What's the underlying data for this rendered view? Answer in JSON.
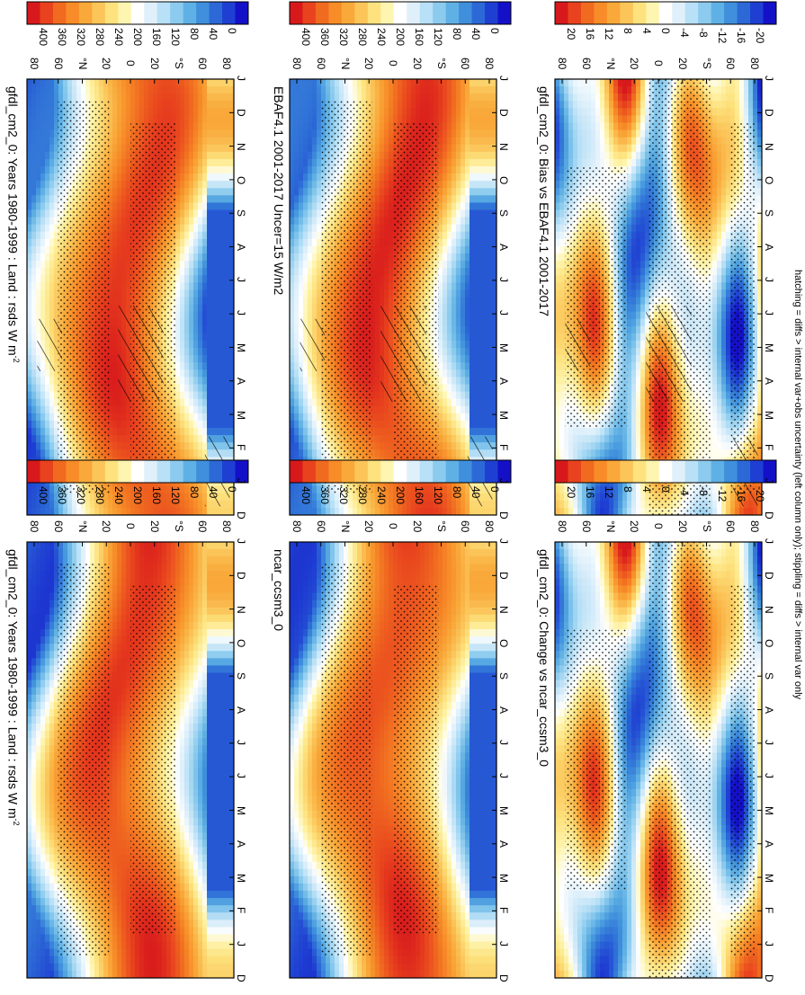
{
  "chart_data": {
    "type": "heatmap",
    "footer": "hatching = diffs > internal var+obs uncertainty (left column only); stippling = diffs > internal var only",
    "x_ticks": [
      "D",
      "J",
      "F",
      "M",
      "A",
      "M",
      "J",
      "J",
      "A",
      "S",
      "O",
      "N",
      "D",
      "J"
    ],
    "y_ticks": [
      "80",
      "60",
      "°N",
      "20",
      "0",
      "20",
      "°S",
      "60",
      "80"
    ],
    "scales": {
      "abs": {
        "ticks": [
          "400",
          "360",
          "320",
          "280",
          "240",
          "200",
          "160",
          "120",
          "80",
          "40",
          "0"
        ],
        "colors": [
          "#d7191c",
          "#e8431e",
          "#f06a20",
          "#f78c28",
          "#f9a93a",
          "#fbc55a",
          "#fde27e",
          "#fef5b0",
          "#ffffff",
          "#dff0fb",
          "#b8e0f6",
          "#8ccbee",
          "#5fb0e4",
          "#3f8fdc",
          "#2c69d6",
          "#1f3fd2",
          "#1410c8"
        ]
      },
      "diff": {
        "ticks": [
          "20",
          "16",
          "12",
          "8",
          "4",
          "0",
          "-4",
          "-8",
          "-12",
          "-16",
          "-20"
        ],
        "colors": [
          "#d7191c",
          "#e8431e",
          "#f06a20",
          "#f78c28",
          "#f9a93a",
          "#fbc55a",
          "#fde27e",
          "#fef5b0",
          "#ffffff",
          "#dff0fb",
          "#b8e0f6",
          "#8ccbee",
          "#5fb0e4",
          "#3f8fdc",
          "#2c69d6",
          "#1f3fd2",
          "#1410c8"
        ]
      }
    },
    "panels": [
      {
        "title": "gfdl_cm2_0: Years 1980-1999 : Land : rsds W m",
        "title_sup": "-2",
        "scale": "abs",
        "kind": "abs",
        "hatch": true
      },
      {
        "title": "EBAF4.1 2001-2017 Uncer=15 W/m2",
        "title_sup": "",
        "scale": "abs",
        "kind": "abs",
        "hatch": true
      },
      {
        "title": "gfdl_cm2_0: Bias vs EBAF4.1 2001-2017",
        "title_sup": "",
        "scale": "diff",
        "kind": "diff",
        "hatch": true
      },
      {
        "title": "gfdl_cm2_0: Years 1980-1999 : Land : rsds W m",
        "title_sup": "-2",
        "scale": "abs",
        "kind": "abs",
        "hatch": false
      },
      {
        "title": "ncar_ccsm3_0",
        "title_sup": "",
        "scale": "abs",
        "kind": "abs",
        "hatch": false
      },
      {
        "title": "gfdl_cm2_0: Change vs ncar_ccsm3_0",
        "title_sup": "",
        "scale": "diff",
        "kind": "diff",
        "hatch": false
      }
    ]
  }
}
